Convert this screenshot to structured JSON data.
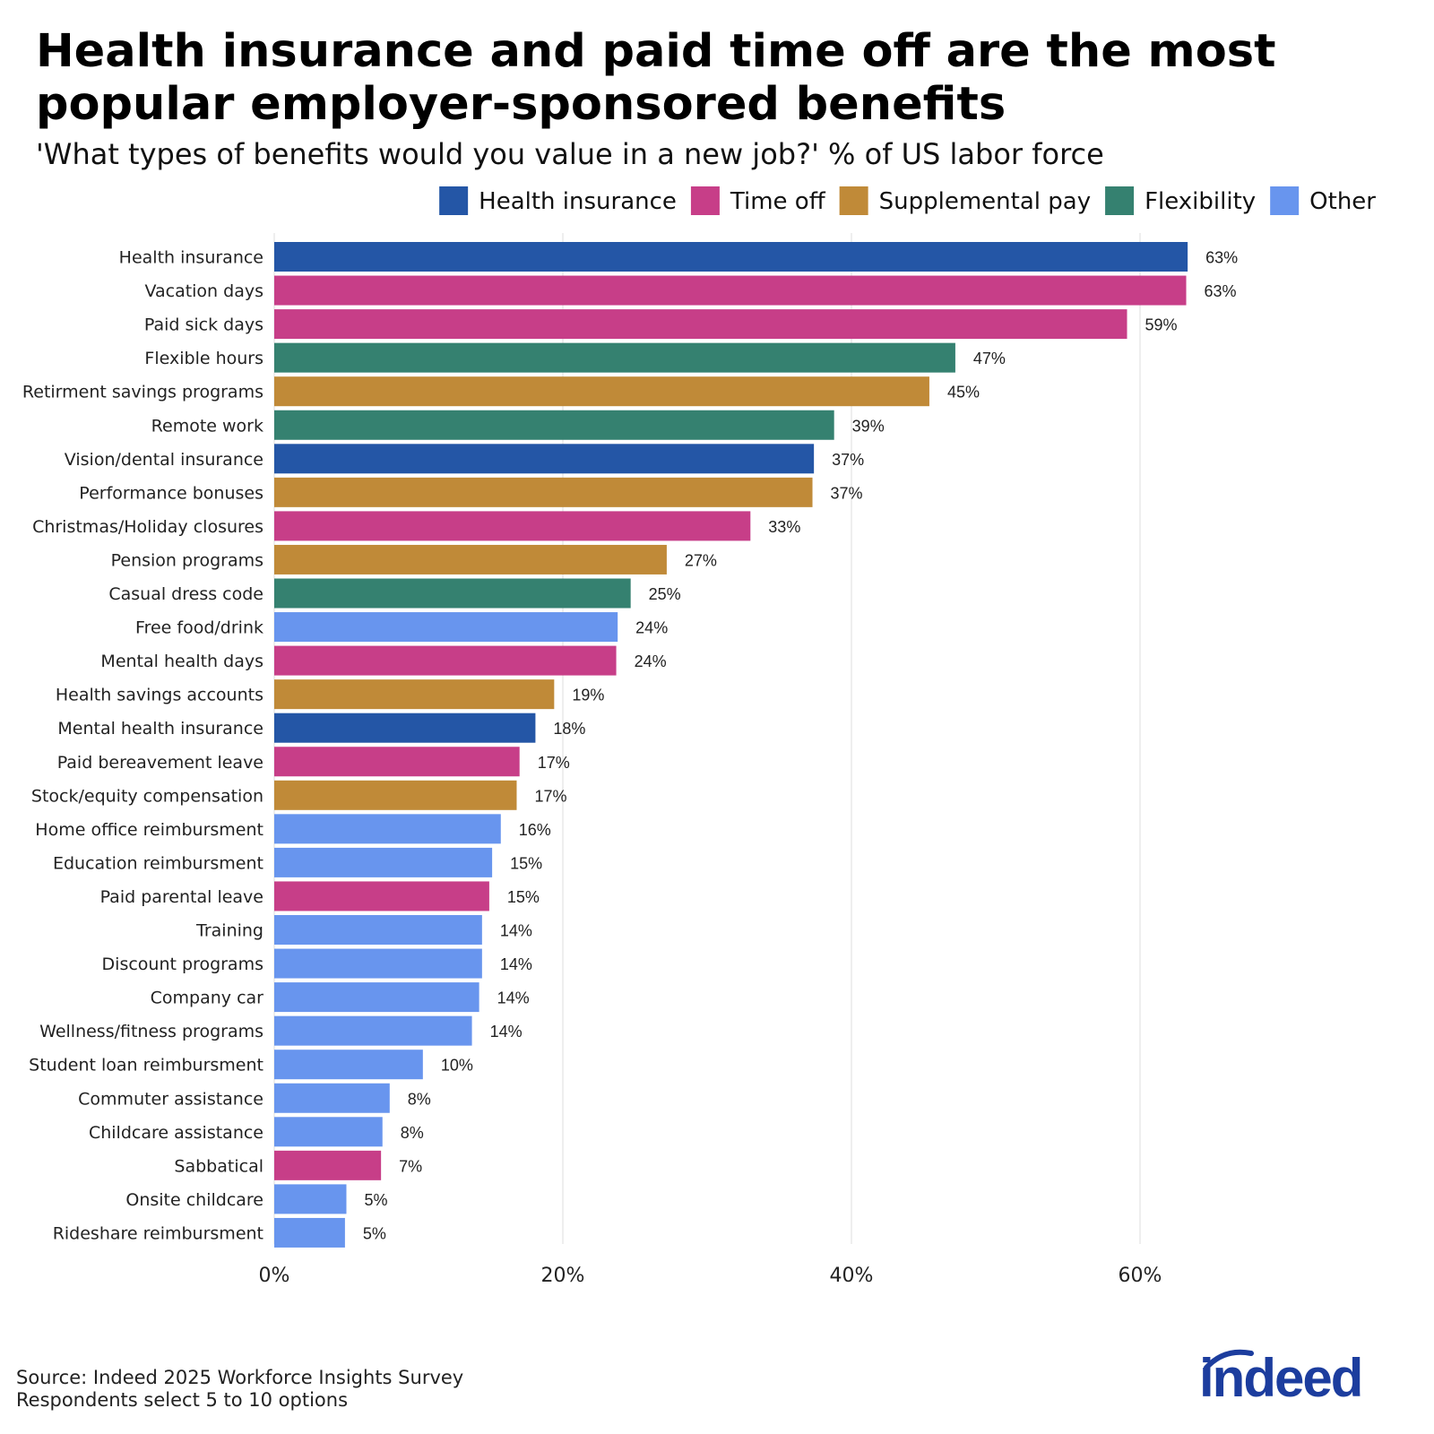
{
  "chart_data": {
    "type": "bar",
    "orientation": "horizontal",
    "title": "Health insurance and paid time off are the most popular employer-sponsored benefits",
    "subtitle": "'What types of benefits would you value in a new job?' % of US labor force",
    "xlim": [
      0,
      70
    ],
    "xticks": [
      0,
      20,
      40,
      60
    ],
    "xtick_labels": [
      "0%",
      "20%",
      "40%",
      "60%"
    ],
    "grid": "vertical",
    "legend_position": "top-right",
    "groups": [
      {
        "key": "health",
        "name": "Health insurance",
        "color": "#2456A6"
      },
      {
        "key": "timeoff",
        "name": "Time off",
        "color": "#C73E88"
      },
      {
        "key": "supp",
        "name": "Supplemental pay",
        "color": "#C08A38"
      },
      {
        "key": "flex",
        "name": "Flexibility",
        "color": "#358170"
      },
      {
        "key": "other",
        "name": "Other",
        "color": "#6895EE"
      }
    ],
    "bars": [
      {
        "label": "Health insurance",
        "value": 63.3,
        "display": "63%",
        "group": "health"
      },
      {
        "label": "Vacation days",
        "value": 63.2,
        "display": "63%",
        "group": "timeoff"
      },
      {
        "label": "Paid sick days",
        "value": 59.1,
        "display": "59%",
        "group": "timeoff"
      },
      {
        "label": "Flexible hours",
        "value": 47.2,
        "display": "47%",
        "group": "flex"
      },
      {
        "label": "Retirment savings programs",
        "value": 45.4,
        "display": "45%",
        "group": "supp"
      },
      {
        "label": "Remote work",
        "value": 38.8,
        "display": "39%",
        "group": "flex"
      },
      {
        "label": "Vision/dental insurance",
        "value": 37.4,
        "display": "37%",
        "group": "health"
      },
      {
        "label": "Performance bonuses",
        "value": 37.3,
        "display": "37%",
        "group": "supp"
      },
      {
        "label": "Christmas/Holiday closures",
        "value": 33.0,
        "display": "33%",
        "group": "timeoff"
      },
      {
        "label": "Pension programs",
        "value": 27.2,
        "display": "27%",
        "group": "supp"
      },
      {
        "label": "Casual dress code",
        "value": 24.7,
        "display": "25%",
        "group": "flex"
      },
      {
        "label": "Free food/drink",
        "value": 23.8,
        "display": "24%",
        "group": "other"
      },
      {
        "label": "Mental health days",
        "value": 23.7,
        "display": "24%",
        "group": "timeoff"
      },
      {
        "label": "Health savings accounts",
        "value": 19.4,
        "display": "19%",
        "group": "supp"
      },
      {
        "label": "Mental health insurance",
        "value": 18.1,
        "display": "18%",
        "group": "health"
      },
      {
        "label": "Paid bereavement leave",
        "value": 17.0,
        "display": "17%",
        "group": "timeoff"
      },
      {
        "label": "Stock/equity compensation",
        "value": 16.8,
        "display": "17%",
        "group": "supp"
      },
      {
        "label": "Home office reimbursment",
        "value": 15.7,
        "display": "16%",
        "group": "other"
      },
      {
        "label": "Education reimbursment",
        "value": 15.1,
        "display": "15%",
        "group": "other"
      },
      {
        "label": "Paid parental leave",
        "value": 14.9,
        "display": "15%",
        "group": "timeoff"
      },
      {
        "label": "Training",
        "value": 14.4,
        "display": "14%",
        "group": "other"
      },
      {
        "label": "Discount programs",
        "value": 14.4,
        "display": "14%",
        "group": "other"
      },
      {
        "label": "Company car",
        "value": 14.2,
        "display": "14%",
        "group": "other"
      },
      {
        "label": "Wellness/fitness programs",
        "value": 13.7,
        "display": "14%",
        "group": "other"
      },
      {
        "label": "Student loan reimbursment",
        "value": 10.3,
        "display": "10%",
        "group": "other"
      },
      {
        "label": "Commuter assistance",
        "value": 8.0,
        "display": "8%",
        "group": "other"
      },
      {
        "label": "Childcare assistance",
        "value": 7.5,
        "display": "8%",
        "group": "other"
      },
      {
        "label": "Sabbatical",
        "value": 7.4,
        "display": "7%",
        "group": "timeoff"
      },
      {
        "label": "Onsite childcare",
        "value": 5.0,
        "display": "5%",
        "group": "other"
      },
      {
        "label": "Rideshare reimbursment",
        "value": 4.9,
        "display": "5%",
        "group": "other"
      }
    ]
  },
  "footer": {
    "source": "Source: Indeed 2025 Workforce Insights Survey",
    "note": "Respondents select 5 to 10 options"
  },
  "logo": {
    "text": "indeed",
    "color": "#1C3D9E"
  }
}
